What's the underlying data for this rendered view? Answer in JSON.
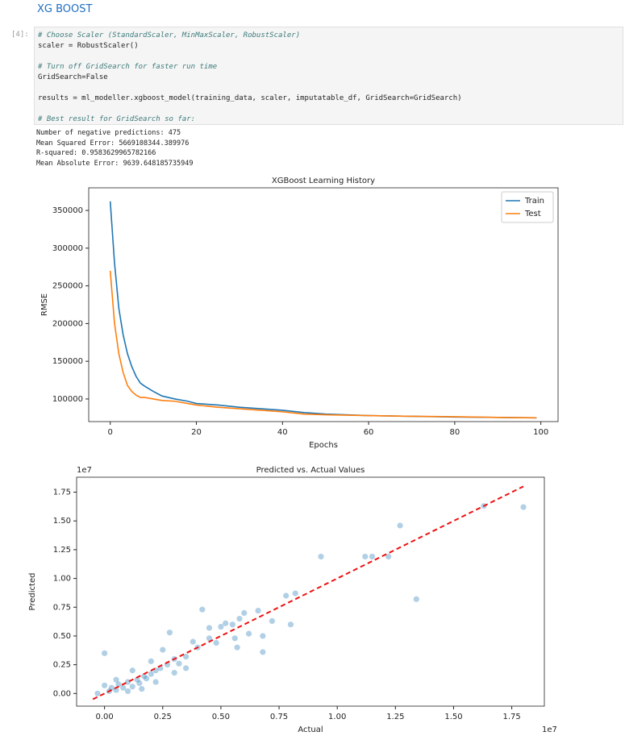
{
  "header": {
    "title": "XG BOOST"
  },
  "cell": {
    "prompt": "[4]:",
    "blocks": [
      [
        "# Choose Scaler (StandardScaler, MinMaxScaler, RobustScaler)",
        "scaler = RobustScaler()"
      ],
      [
        "# Turn off GridSearch for faster run time",
        "GridSearch=False"
      ],
      [
        "results = ml_modeller.xgboost_model(training_data, scaler, imputatable_df, GridSearch=GridSearch)"
      ],
      [
        "# Best result for GridSearch so far:"
      ]
    ]
  },
  "output": [
    "Number of negative predictions: 475",
    "Mean Squared Error: 5669108344.389976",
    "R-squared: 0.9583629965782166",
    "Mean Absolute Error: 9639.648185735949"
  ],
  "chart_data": [
    {
      "type": "line",
      "title": "XGBoost Learning History",
      "x_label": "Epochs",
      "y_label": "RMSE",
      "x": [
        0,
        1,
        2,
        3,
        4,
        5,
        6,
        7,
        8,
        10,
        12,
        15,
        18,
        20,
        25,
        30,
        35,
        40,
        45,
        50,
        60,
        70,
        80,
        90,
        99
      ],
      "series": [
        {
          "name": "Train",
          "color": "#1f77b4",
          "values": [
            362000,
            280000,
            220000,
            185000,
            160000,
            143000,
            130000,
            121000,
            117000,
            110000,
            104000,
            100000,
            97000,
            94000,
            92000,
            89000,
            87000,
            85000,
            82000,
            80000,
            78000,
            77000,
            76000,
            75500,
            75000
          ]
        },
        {
          "name": "Test",
          "color": "#ff7f0e",
          "values": [
            270000,
            200000,
            160000,
            135000,
            118000,
            110000,
            105000,
            102000,
            102000,
            100000,
            98000,
            97000,
            94000,
            92000,
            89000,
            87000,
            85000,
            83000,
            80000,
            79000,
            78000,
            77000,
            76500,
            75500,
            75000
          ]
        }
      ],
      "xlim": [
        -5,
        104
      ],
      "ylim": [
        70000,
        380000
      ],
      "xticks": [
        0,
        20,
        40,
        60,
        80,
        100
      ],
      "yticks": [
        100000,
        150000,
        200000,
        250000,
        300000,
        350000
      ],
      "legend": "upper-right"
    },
    {
      "type": "scatter",
      "title": "Predicted vs. Actual Values",
      "x_label": "Actual",
      "y_label": "Predicted",
      "x_offset": "1e7",
      "y_offset": "1e7",
      "color": "#1f77b4",
      "x": [
        0,
        -0.03,
        0,
        0.02,
        0.03,
        0.05,
        0.06,
        0.08,
        0.1,
        0.12,
        0.14,
        0.15,
        0.17,
        0.18,
        0.2,
        0.22,
        0.24,
        0.25,
        0.27,
        0.28,
        0.3,
        0.32,
        0.35,
        0.38,
        0.4,
        0.42,
        0.45,
        0.48,
        0.5,
        0.52,
        0.55,
        0.57,
        0.58,
        0.6,
        0.62,
        0.68,
        0.72,
        0.78,
        0.8,
        0.82,
        0.93,
        1.12,
        1.15,
        1.22,
        1.27,
        1.34,
        1.63,
        1.8,
        0.1,
        0.05,
        0.12,
        0.16,
        0.2,
        0.22,
        0.3,
        0.35,
        0.45,
        0.56,
        0.66,
        0.68
      ],
      "y": [
        0.35,
        0,
        0.07,
        0.02,
        0.05,
        0.03,
        0.08,
        0.05,
        0.1,
        0.06,
        0.12,
        0.09,
        0.15,
        0.13,
        0.17,
        0.2,
        0.22,
        0.38,
        0.25,
        0.53,
        0.3,
        0.26,
        0.32,
        0.45,
        0.4,
        0.73,
        0.48,
        0.44,
        0.58,
        0.61,
        0.6,
        0.4,
        0.65,
        0.7,
        0.52,
        0.36,
        0.63,
        0.85,
        0.6,
        0.87,
        1.19,
        1.19,
        1.19,
        1.19,
        1.46,
        0.82,
        1.63,
        1.62,
        0.02,
        0.12,
        0.2,
        0.04,
        0.28,
        0.1,
        0.18,
        0.22,
        0.57,
        0.48,
        0.72,
        0.5
      ],
      "reference_line": {
        "color": "#ee1111",
        "x": [
          -0.05,
          1.8
        ],
        "y": [
          -0.05,
          1.8
        ]
      },
      "xlim": [
        -0.12,
        1.89
      ],
      "ylim": [
        -0.11,
        1.88
      ],
      "xticks": [
        {
          "value": 0,
          "label": "0.00"
        },
        {
          "value": 0.25,
          "label": "0.25"
        },
        {
          "value": 0.5,
          "label": "0.50"
        },
        {
          "value": 0.75,
          "label": "0.75"
        },
        {
          "value": 1,
          "label": "1.00"
        },
        {
          "value": 1.25,
          "label": "1.25"
        },
        {
          "value": 1.5,
          "label": "1.50"
        },
        {
          "value": 1.75,
          "label": "1.75"
        }
      ],
      "yticks": [
        {
          "value": 0,
          "label": "0.00"
        },
        {
          "value": 0.25,
          "label": "0.25"
        },
        {
          "value": 0.5,
          "label": "0.50"
        },
        {
          "value": 0.75,
          "label": "0.75"
        },
        {
          "value": 1,
          "label": "1.00"
        },
        {
          "value": 1.25,
          "label": "1.25"
        },
        {
          "value": 1.5,
          "label": "1.50"
        },
        {
          "value": 1.75,
          "label": "1.75"
        }
      ]
    }
  ]
}
